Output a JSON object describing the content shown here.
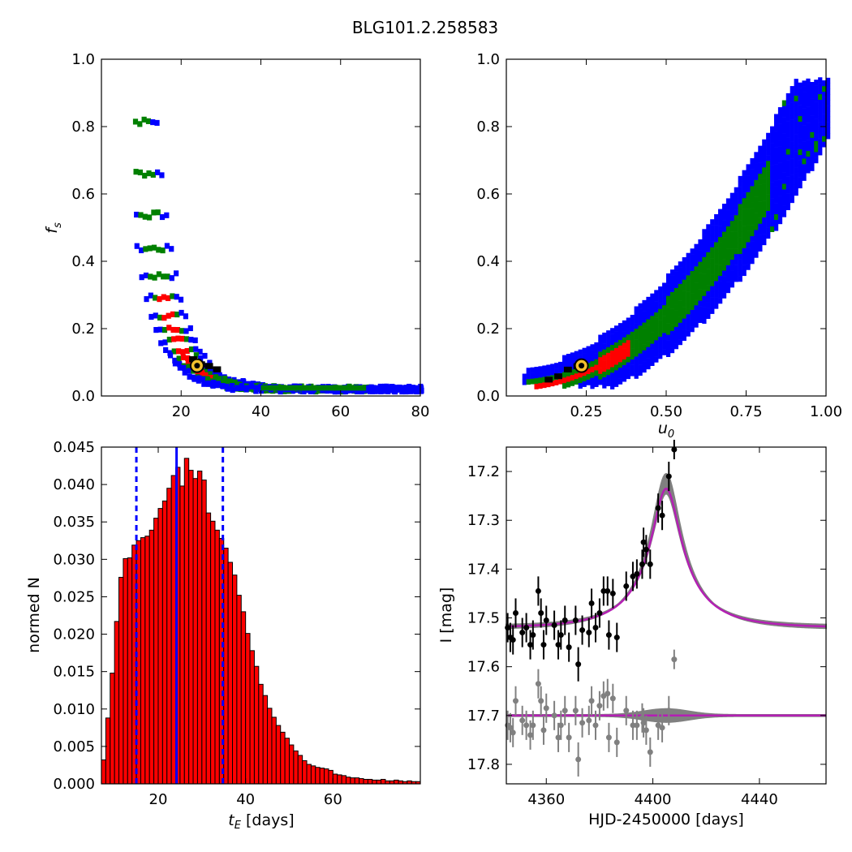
{
  "figure": {
    "title": "BLG101.2.258583"
  },
  "chart_data": [
    {
      "type": "heatmap",
      "panel": "top-left",
      "xlabel": "",
      "ylabel": "f_s",
      "xlim": [
        0,
        80
      ],
      "ylim": [
        0.0,
        1.0
      ],
      "xticks": [
        "20",
        "40",
        "60",
        "80"
      ],
      "yticks": [
        "0.0",
        "0.2",
        "0.4",
        "0.6",
        "0.8",
        "1.0"
      ],
      "colors": {
        "outer": "#0000ff",
        "middle": "#008000",
        "inner": "#ff0000",
        "core": "#000000",
        "best_fit": "#f2c12e"
      },
      "best_fit": {
        "tE": 24.0,
        "fs": 0.09
      },
      "band": [
        [
          8,
          8,
          11,
          0.93
        ],
        [
          10,
          9,
          13,
          0.86
        ],
        [
          12,
          10,
          15,
          0.74
        ],
        [
          14,
          11,
          17,
          0.62
        ],
        [
          16,
          12,
          18,
          0.52
        ],
        [
          18,
          12,
          19,
          0.44
        ],
        [
          20,
          13,
          21,
          0.37
        ],
        [
          22,
          13,
          23,
          0.31
        ],
        [
          24,
          14,
          25,
          0.26
        ],
        [
          26,
          15,
          28,
          0.21
        ],
        [
          28,
          16,
          31,
          0.16
        ],
        [
          30,
          17,
          34,
          0.12
        ],
        [
          32,
          19,
          38,
          0.085
        ],
        [
          34,
          21,
          42,
          0.065
        ],
        [
          36,
          25,
          49,
          0.05
        ],
        [
          38,
          30,
          57,
          0.035
        ],
        [
          40,
          35,
          68,
          0.022
        ],
        [
          42,
          41,
          80,
          0.012
        ]
      ]
    },
    {
      "type": "heatmap",
      "panel": "top-right",
      "xlabel": "u_0",
      "ylabel": "",
      "xlim": [
        0.0,
        1.0
      ],
      "ylim": [
        0.0,
        1.0
      ],
      "xticks": [
        "0.25",
        "0.50",
        "0.75",
        "1.00"
      ],
      "yticks": [
        "0.0",
        "0.2",
        "0.4",
        "0.6",
        "0.8",
        "1.0"
      ],
      "best_fit": {
        "u0": 0.235,
        "fs": 0.09
      },
      "relation": {
        "a": 0.06,
        "b": 0.93,
        "power": 2.1
      }
    },
    {
      "type": "bar",
      "panel": "bottom-left",
      "xlabel": "t_E [days]",
      "ylabel": "normed N",
      "xlim": [
        7,
        80
      ],
      "ylim": [
        0.0,
        0.045
      ],
      "xticks": [
        "20",
        "40",
        "60"
      ],
      "yticks": [
        "0.000",
        "0.005",
        "0.010",
        "0.015",
        "0.020",
        "0.025",
        "0.030",
        "0.035",
        "0.040",
        "0.045"
      ],
      "bin_start": 7,
      "bin_width": 1,
      "values": [
        0.0032,
        0.0088,
        0.0148,
        0.0217,
        0.0276,
        0.0301,
        0.0302,
        0.0319,
        0.0325,
        0.0329,
        0.0331,
        0.0339,
        0.0355,
        0.0368,
        0.0378,
        0.0395,
        0.0412,
        0.0423,
        0.0398,
        0.0435,
        0.0419,
        0.0408,
        0.0418,
        0.0406,
        0.0362,
        0.0351,
        0.0339,
        0.0328,
        0.0315,
        0.0296,
        0.0279,
        0.0252,
        0.023,
        0.0201,
        0.0178,
        0.0157,
        0.0133,
        0.0118,
        0.0101,
        0.0089,
        0.0078,
        0.0069,
        0.0061,
        0.0052,
        0.0044,
        0.0038,
        0.0031,
        0.0026,
        0.0024,
        0.0022,
        0.0021,
        0.002,
        0.0018,
        0.0013,
        0.0012,
        0.0011,
        0.0009,
        0.0008,
        0.0008,
        0.0007,
        0.0006,
        0.0006,
        0.0005,
        0.0005,
        0.0006,
        0.0004,
        0.0004,
        0.0005,
        0.0004,
        0.0003,
        0.0004,
        0.0003,
        0.0003
      ],
      "bar_color": "#ff0000",
      "median": 24.2,
      "lower": 15.0,
      "upper": 34.8
    },
    {
      "type": "line",
      "panel": "bottom-right",
      "xlabel": "HJD-2450000 [days]",
      "ylabel": "I [mag]",
      "xlim": [
        4345,
        4465
      ],
      "ylim": [
        17.84,
        17.15
      ],
      "xticks": [
        "4360",
        "4400",
        "4440"
      ],
      "yticks": [
        "17.2",
        "17.3",
        "17.4",
        "17.5",
        "17.6",
        "17.7",
        "17.8"
      ],
      "model": {
        "t0": 4405,
        "baseline": 17.52,
        "peak": 17.235,
        "tE": 24,
        "fs": 0.09,
        "u0": 0.235
      },
      "residual_baseline": 17.7,
      "colors": {
        "model": "#b41fb4",
        "model_band": "#808080",
        "data": "#000000",
        "residuals": "#808080"
      },
      "data_points": [
        [
          4345.5,
          17.52,
          0.03
        ],
        [
          4346.5,
          17.54,
          0.03
        ],
        [
          4347.5,
          17.545,
          0.03
        ],
        [
          4348.5,
          17.49,
          0.03
        ],
        [
          4351,
          17.53,
          0.03
        ],
        [
          4352.5,
          17.52,
          0.03
        ],
        [
          4354,
          17.555,
          0.03
        ],
        [
          4355,
          17.535,
          0.03
        ],
        [
          4357,
          17.445,
          0.03
        ],
        [
          4358,
          17.49,
          0.03
        ],
        [
          4359,
          17.555,
          0.03
        ],
        [
          4360,
          17.505,
          0.03
        ],
        [
          4363,
          17.515,
          0.03
        ],
        [
          4364.5,
          17.555,
          0.03
        ],
        [
          4365.5,
          17.535,
          0.03
        ],
        [
          4367,
          17.505,
          0.03
        ],
        [
          4368.5,
          17.56,
          0.03
        ],
        [
          4371,
          17.505,
          0.03
        ],
        [
          4372,
          17.595,
          0.035
        ],
        [
          4373.5,
          17.525,
          0.03
        ],
        [
          4376,
          17.53,
          0.03
        ],
        [
          4377,
          17.47,
          0.03
        ],
        [
          4378.5,
          17.52,
          0.03
        ],
        [
          4380,
          17.49,
          0.03
        ],
        [
          4381.5,
          17.445,
          0.03
        ],
        [
          4383,
          17.445,
          0.03
        ],
        [
          4383.5,
          17.535,
          0.03
        ],
        [
          4385,
          17.45,
          0.03
        ],
        [
          4386.5,
          17.54,
          0.03
        ],
        [
          4390,
          17.435,
          0.03
        ],
        [
          4392.5,
          17.415,
          0.03
        ],
        [
          4394,
          17.41,
          0.03
        ],
        [
          4396,
          17.39,
          0.03
        ],
        [
          4396.5,
          17.345,
          0.03
        ],
        [
          4397.5,
          17.36,
          0.03
        ],
        [
          4399,
          17.39,
          0.03
        ],
        [
          4402,
          17.275,
          0.03
        ],
        [
          4403.5,
          17.29,
          0.03
        ],
        [
          4406,
          17.21,
          0.03
        ],
        [
          4408,
          17.155,
          0.02
        ]
      ],
      "residual_points": [
        [
          4345.5,
          17.72,
          0.03
        ],
        [
          4346.5,
          17.725,
          0.03
        ],
        [
          4347.5,
          17.735,
          0.03
        ],
        [
          4348.5,
          17.67,
          0.03
        ],
        [
          4351,
          17.71,
          0.03
        ],
        [
          4352.5,
          17.72,
          0.03
        ],
        [
          4354,
          17.74,
          0.03
        ],
        [
          4355,
          17.72,
          0.03
        ],
        [
          4357,
          17.635,
          0.03
        ],
        [
          4358,
          17.67,
          0.03
        ],
        [
          4359,
          17.73,
          0.03
        ],
        [
          4360,
          17.685,
          0.03
        ],
        [
          4363,
          17.7,
          0.03
        ],
        [
          4364.5,
          17.745,
          0.03
        ],
        [
          4365.5,
          17.72,
          0.03
        ],
        [
          4367,
          17.69,
          0.03
        ],
        [
          4368.5,
          17.745,
          0.03
        ],
        [
          4371,
          17.69,
          0.03
        ],
        [
          4372,
          17.79,
          0.035
        ],
        [
          4373.5,
          17.715,
          0.03
        ],
        [
          4376,
          17.71,
          0.03
        ],
        [
          4377,
          17.67,
          0.03
        ],
        [
          4378.5,
          17.72,
          0.03
        ],
        [
          4380,
          17.68,
          0.03
        ],
        [
          4381.5,
          17.66,
          0.03
        ],
        [
          4383,
          17.655,
          0.03
        ],
        [
          4383.5,
          17.745,
          0.03
        ],
        [
          4385,
          17.665,
          0.03
        ],
        [
          4386.5,
          17.755,
          0.03
        ],
        [
          4390,
          17.69,
          0.03
        ],
        [
          4392.5,
          17.72,
          0.03
        ],
        [
          4394,
          17.72,
          0.03
        ],
        [
          4396,
          17.705,
          0.03
        ],
        [
          4396.5,
          17.715,
          0.03
        ],
        [
          4397.5,
          17.73,
          0.03
        ],
        [
          4399,
          17.775,
          0.03
        ],
        [
          4402,
          17.72,
          0.03
        ],
        [
          4403.5,
          17.725,
          0.03
        ],
        [
          4406,
          17.69,
          0.03
        ],
        [
          4408,
          17.585,
          0.02
        ]
      ]
    }
  ]
}
